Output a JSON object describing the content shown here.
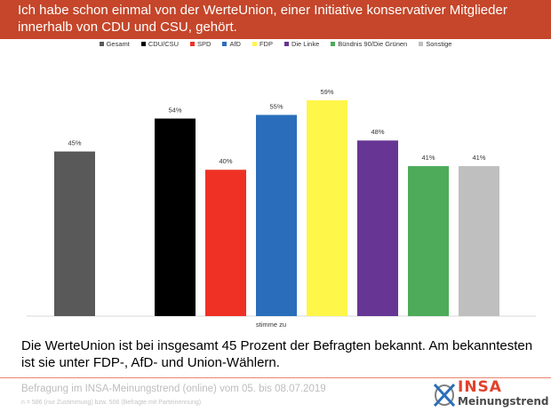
{
  "header": {
    "title": "Ich habe schon einmal von der WerteUnion, einer Initiative konservativer Mitglieder innerhalb von CDU und CSU, gehört."
  },
  "legend": [
    {
      "label": "Gesamt",
      "color": "#595959"
    },
    {
      "label": "CDU/CSU",
      "color": "#000000"
    },
    {
      "label": "SPD",
      "color": "#ee3124"
    },
    {
      "label": "AfD",
      "color": "#2a6ebb"
    },
    {
      "label": "FDP",
      "color": "#fff64a"
    },
    {
      "label": "Die Linke",
      "color": "#673695"
    },
    {
      "label": "Bündnis 90/Die Grünen",
      "color": "#4dab5a"
    },
    {
      "label": "Sonstige",
      "color": "#bfbfbf"
    }
  ],
  "chart_data": {
    "type": "bar",
    "title": "Ich habe schon einmal von der WerteUnion, einer Initiative konservativer Mitglieder innerhalb von CDU und CSU, gehört.",
    "categories": [
      "stimme zu"
    ],
    "xlabel": "stimme zu",
    "ylabel": "",
    "ylim": [
      0,
      60
    ],
    "grid": false,
    "legend_position": "top",
    "series": [
      {
        "name": "Gesamt",
        "values": [
          45
        ],
        "label": "45%",
        "color": "#595959"
      },
      {
        "name": "CDU/CSU",
        "values": [
          54
        ],
        "label": "54%",
        "color": "#000000"
      },
      {
        "name": "SPD",
        "values": [
          40
        ],
        "label": "40%",
        "color": "#ee3124"
      },
      {
        "name": "AfD",
        "values": [
          55
        ],
        "label": "55%",
        "color": "#2a6ebb"
      },
      {
        "name": "FDP",
        "values": [
          59
        ],
        "label": "59%",
        "color": "#fff64a"
      },
      {
        "name": "Die Linke",
        "values": [
          48
        ],
        "label": "48%",
        "color": "#673695"
      },
      {
        "name": "Bündnis 90/Die Grünen",
        "values": [
          41
        ],
        "label": "41%",
        "color": "#4dab5a"
      },
      {
        "name": "Sonstige",
        "values": [
          41
        ],
        "label": "41%",
        "color": "#bfbfbf"
      }
    ]
  },
  "summary": "Die WerteUnion ist bei insgesamt 45 Prozent der Befragten bekannt. Am bekanntesten ist sie unter FDP-, AfD- und Union-Wählern.",
  "footer": {
    "source": "Befragung im INSA-Meinungstrend (online) vom 05. bis 08.07.2019",
    "note": "n = 586 (nur Zustimmung) bzw. 508 (Befragte mit Parteinennung)",
    "logo_brand": "INSA",
    "logo_sub": "Meinungstrend"
  },
  "colors": {
    "header_bg": "#c5462a",
    "logo_red": "#e2412b",
    "logo_blue": "#2a6ebb"
  }
}
